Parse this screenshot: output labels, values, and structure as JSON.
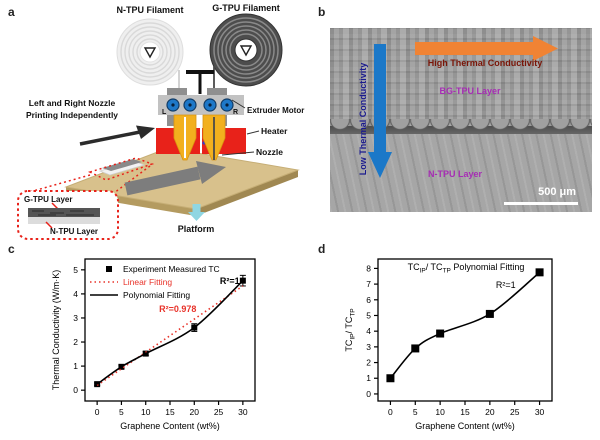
{
  "figure": {
    "panel_labels": {
      "a": "a",
      "b": "b",
      "c": "c",
      "d": "d"
    }
  },
  "panel_a": {
    "n_spool_label": "N-TPU Filament",
    "g_spool_label": "G-TPU Filament",
    "note_line1": "Left and Right Nozzle",
    "note_line2": "Printing Independently",
    "left_letter": "L",
    "right_letter": "R",
    "extruder_label": "Extruder Motor",
    "heater_label": "Heater",
    "nozzle_label": "Nozzle",
    "platform_label": "Platform",
    "inset_top_label": "G-TPU Layer",
    "inset_bottom_label": "N-TPU Layer",
    "colors": {
      "platform": "#d8c18c",
      "platform_front": "#b49b60",
      "platform_side": "#a08852",
      "heater": "#e8221a",
      "nozzle": "#f2b01e",
      "gear_blue": "#1e78c8",
      "print_arrow_gray": "#7d7d7d",
      "cyan_arrow": "#8fd6e2",
      "inset_red": "#e8221a"
    }
  },
  "panel_b": {
    "low_label": "Low Thermal Conductivity",
    "high_label": "High Thermal Conductivity",
    "top_layer_label": "BG-TPU Layer",
    "bottom_layer_label": "N-TPU Layer",
    "scale_bar": "500 μm",
    "colors": {
      "low_arrow": "#1b78c8",
      "high_arrow": "#f08334",
      "low_text": "#1a1a8e",
      "high_text": "#7a1608",
      "layer_text": "#a62cb4"
    }
  },
  "chart_data": [
    {
      "id": "c",
      "type": "line",
      "title": "",
      "xlabel": "Graphene Content (wt%)",
      "ylabel": "Thermal Conductivity (W/m·K)",
      "xlim": [
        -2.5,
        32.5
      ],
      "ylim": [
        -0.45,
        5.45
      ],
      "xticks": [
        0,
        5,
        10,
        15,
        20,
        25,
        30
      ],
      "yticks": [
        0,
        1,
        2,
        3,
        4,
        5
      ],
      "x": [
        0,
        5,
        10,
        20,
        30
      ],
      "grid": false,
      "legend": true,
      "legend_position": "top-left",
      "series": [
        {
          "name": "Experiment Measured TC",
          "type": "scatter",
          "marker": "square",
          "marker_size": 6,
          "color": "#000000",
          "values": [
            0.25,
            0.97,
            1.52,
            2.6,
            4.55
          ],
          "yerr": [
            0.05,
            0.07,
            0.08,
            0.16,
            0.22
          ]
        },
        {
          "name": "Linear Fitting",
          "type": "line",
          "dash": "dotted",
          "color": "#e8332a",
          "x": [
            0,
            30
          ],
          "values": [
            0.2,
            4.33
          ]
        },
        {
          "name": "Polynomial Fitting",
          "type": "spline",
          "color": "#000000",
          "values": [
            0.25,
            0.97,
            1.52,
            2.6,
            4.55
          ]
        }
      ],
      "annotations": [
        {
          "text": "R²=1",
          "x": 27.3,
          "y": 4.42,
          "color": "#000000",
          "bold": true
        },
        {
          "text": "R²=0.978",
          "x": 16.6,
          "y": 3.25,
          "color": "#e8332a",
          "bold": true
        }
      ]
    },
    {
      "id": "d",
      "type": "line",
      "title": "",
      "xlabel": "Graphene Content (wt%)",
      "ylabel_parts": [
        {
          "t": "TC"
        },
        {
          "t": "IP",
          "sub": true
        },
        {
          "t": "/ TC"
        },
        {
          "t": "TP",
          "sub": true
        }
      ],
      "xlim": [
        -2.5,
        32.5
      ],
      "ylim": [
        -0.45,
        8.6
      ],
      "xticks": [
        0,
        5,
        10,
        15,
        20,
        25,
        30
      ],
      "yticks": [
        0,
        1,
        2,
        3,
        4,
        5,
        6,
        7,
        8
      ],
      "x": [
        0,
        5,
        10,
        20,
        30
      ],
      "grid": false,
      "legend": false,
      "series": [
        {
          "name": "TCIP/TCTP Polynomial Fitting",
          "type": "scatter-spline",
          "marker": "square",
          "marker_size": 8,
          "color": "#000000",
          "values": [
            1.0,
            2.9,
            3.85,
            5.1,
            7.75
          ]
        }
      ],
      "annotations": [
        {
          "parts": [
            {
              "t": "TC"
            },
            {
              "t": "IP",
              "sub": true
            },
            {
              "t": "/ TC"
            },
            {
              "t": "TP",
              "sub": true
            },
            {
              "t": " Polynomial Fitting"
            }
          ],
          "x": 15.2,
          "y": 7.9,
          "color": "#000000",
          "bold": false
        },
        {
          "text": "R²=1",
          "x": 23.2,
          "y": 6.75,
          "color": "#000000",
          "bold": false
        }
      ]
    }
  ]
}
